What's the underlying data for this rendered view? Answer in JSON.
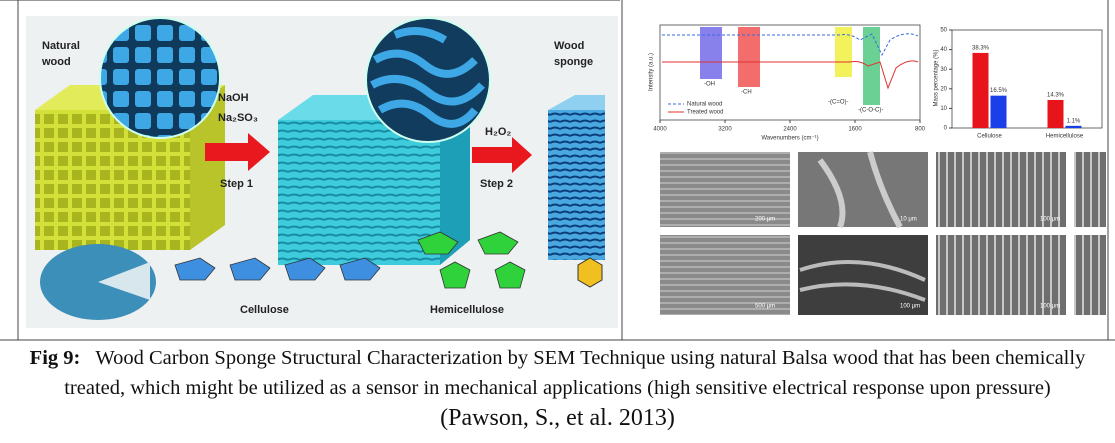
{
  "left_panel": {
    "natural_wood": [
      "Natural",
      "wood"
    ],
    "wood_sponge": [
      "Wood",
      "sponge"
    ],
    "reagent_1": [
      "NaOH",
      "Na₂SO₃"
    ],
    "step_1": "Step 1",
    "reagent_2": "H₂O₂",
    "step_2": "Step 2",
    "cellulose": "Cellulose",
    "hemicellulose": "Hemicellulose"
  },
  "ftir": {
    "xlabel": "Wavenumbers (cm⁻¹)",
    "ylabel": "Intensity (a.u.)",
    "xticks": [
      4000,
      3200,
      2400,
      1600,
      800
    ],
    "xlim": [
      4000,
      800
    ],
    "bands": [
      "-OH",
      "-CH",
      "-(C=O)-",
      "-(C-O-C)-"
    ],
    "legend": [
      "Natural wood",
      "Treated wood"
    ]
  },
  "bar_chart": {
    "ylabel": "Mass percentage (%)",
    "ylim": [
      0,
      50
    ],
    "yticks": [
      0,
      10,
      20,
      30,
      40,
      50
    ],
    "categories": [
      "Cellulose",
      "Hemicellulose"
    ],
    "series": [
      {
        "color": "#e8141b",
        "values": [
          38.3,
          14.3
        ],
        "value_labels": [
          "38.3%",
          "14.3%"
        ]
      },
      {
        "color": "#1a3ee8",
        "values": [
          16.5,
          1.1
        ],
        "value_labels": [
          "16.5%",
          "1.1%"
        ]
      }
    ]
  },
  "sem": {
    "scale_labels": [
      "200 μm",
      "10 μm",
      "100 μm",
      "500 μm",
      "100 μm",
      "100 μm"
    ]
  },
  "caption": {
    "label": "Fig 9:",
    "text": "Wood Carbon Sponge Structural Characterization by SEM Technique using natural Balsa wood that has been chemically treated, which might be utilized as a sensor in mechanical applications (high sensitive electrical response upon pressure)",
    "citation": "(Pawson, S., et al. 2013)"
  }
}
